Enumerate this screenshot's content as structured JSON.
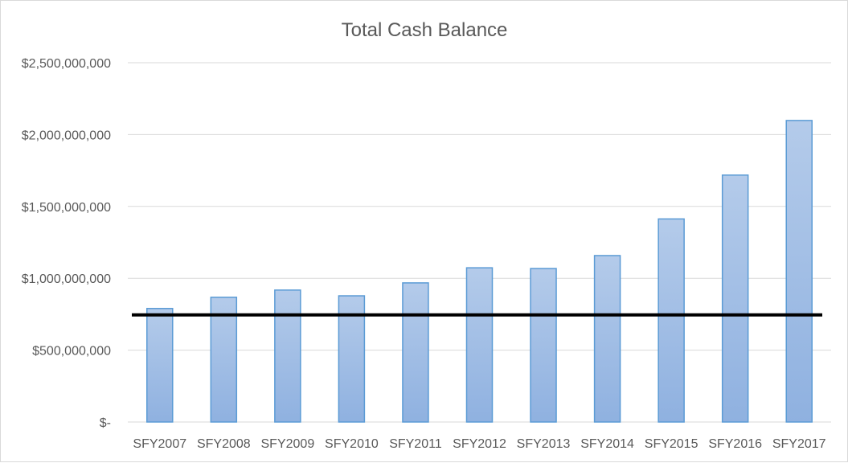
{
  "chart_data": {
    "type": "bar",
    "title": "Total Cash Balance",
    "xlabel": "",
    "ylabel": "",
    "categories": [
      "SFY2007",
      "SFY2008",
      "SFY2009",
      "SFY2010",
      "SFY2011",
      "SFY2012",
      "SFY2013",
      "SFY2014",
      "SFY2015",
      "SFY2016",
      "SFY2017"
    ],
    "values": [
      790000000,
      868000000,
      918000000,
      878000000,
      968000000,
      1073000000,
      1068000000,
      1158000000,
      1413000000,
      1718000000,
      2098000000
    ],
    "ylim": [
      0,
      2500000000
    ],
    "y_ticks": [
      0,
      500000000,
      1000000000,
      1500000000,
      2000000000,
      2500000000
    ],
    "y_tick_labels": [
      "$-",
      "$500,000,000",
      "$1,000,000,000",
      "$1,500,000,000",
      "$2,000,000,000",
      "$2,500,000,000"
    ],
    "reference_line": 745000000,
    "grid": true,
    "legend": "none",
    "colors": {
      "bar_fill_top": "#b4cbea",
      "bar_fill_bottom": "#8fb1e0",
      "bar_stroke": "#5b9bd5",
      "gridline": "#d9d9d9",
      "reference_line": "#000000",
      "text": "#595959"
    }
  }
}
